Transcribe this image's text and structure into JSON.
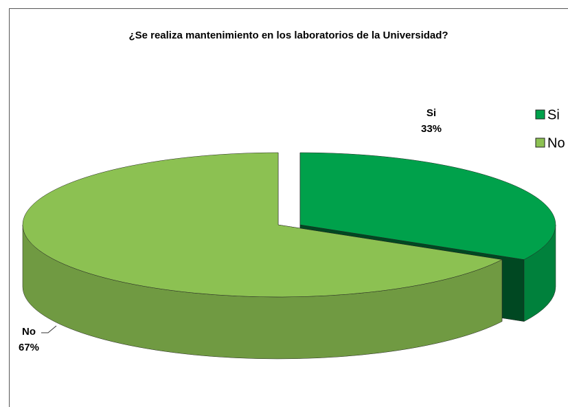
{
  "chart_data": {
    "type": "pie",
    "title": "¿Se realiza mantenimiento  en los laboratorios  de la Universidad?",
    "categories": [
      "Si",
      "No"
    ],
    "values": [
      33,
      67
    ],
    "value_labels": [
      "33%",
      "67%"
    ],
    "colors": [
      "#00a14b",
      "#8cc152"
    ],
    "legend": "right"
  }
}
